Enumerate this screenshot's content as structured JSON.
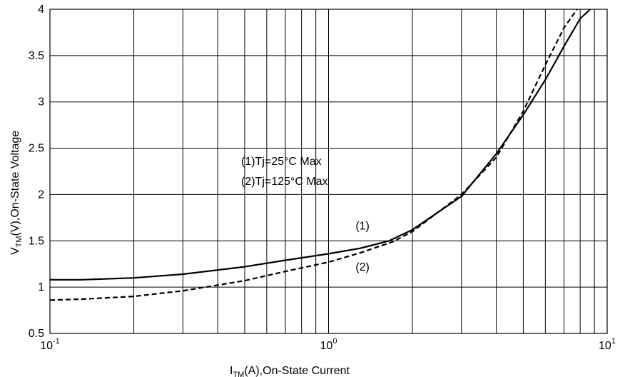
{
  "chart_data": {
    "type": "line",
    "x_scale": "log",
    "xlim": [
      0.1,
      10
    ],
    "ylim": [
      0.5,
      4
    ],
    "x_ticks": [
      {
        "base": "10",
        "exp": "-1"
      },
      {
        "base": "10",
        "exp": "0"
      },
      {
        "base": "10",
        "exp": "1"
      }
    ],
    "y_ticks": [
      "0.5",
      "1",
      "1.5",
      "2",
      "2.5",
      "3",
      "3.5",
      "4"
    ],
    "y_tick_values": [
      0.5,
      1,
      1.5,
      2,
      2.5,
      3,
      3.5,
      4
    ],
    "grid": true,
    "xlabel": {
      "main": "I",
      "sub": "TM",
      "rest": "(A),On-State Current"
    },
    "ylabel": {
      "main": "V",
      "sub": "TM",
      "rest": "(V),On-State Voltage"
    },
    "legend_lines": [
      "(1)Tj=25°C Max",
      "(2)Tj=125°C Max"
    ],
    "series": [
      {
        "label": "(1)",
        "style": "solid",
        "points": [
          [
            0.1,
            1.08
          ],
          [
            0.13,
            1.08
          ],
          [
            0.2,
            1.1
          ],
          [
            0.3,
            1.14
          ],
          [
            0.5,
            1.22
          ],
          [
            0.7,
            1.29
          ],
          [
            1.0,
            1.36
          ],
          [
            1.3,
            1.42
          ],
          [
            1.65,
            1.5
          ],
          [
            2.0,
            1.62
          ],
          [
            3.0,
            1.98
          ],
          [
            4.0,
            2.44
          ],
          [
            5.0,
            2.86
          ],
          [
            6.0,
            3.24
          ],
          [
            7.0,
            3.6
          ],
          [
            8.0,
            3.9
          ],
          [
            8.7,
            4.0
          ]
        ]
      },
      {
        "label": "(2)",
        "style": "dashed",
        "points": [
          [
            0.1,
            0.86
          ],
          [
            0.13,
            0.87
          ],
          [
            0.2,
            0.9
          ],
          [
            0.3,
            0.96
          ],
          [
            0.5,
            1.07
          ],
          [
            0.7,
            1.17
          ],
          [
            1.0,
            1.27
          ],
          [
            1.3,
            1.37
          ],
          [
            1.7,
            1.49
          ],
          [
            2.0,
            1.6
          ],
          [
            3.0,
            2.0
          ],
          [
            4.0,
            2.4
          ],
          [
            5.0,
            2.9
          ],
          [
            6.0,
            3.4
          ],
          [
            7.0,
            3.8
          ],
          [
            7.8,
            4.0
          ]
        ]
      }
    ],
    "series_labels": [
      {
        "text": "(1)",
        "x": 1.25,
        "y": 1.62
      },
      {
        "text": "(2)",
        "x": 1.25,
        "y": 1.18
      }
    ]
  }
}
